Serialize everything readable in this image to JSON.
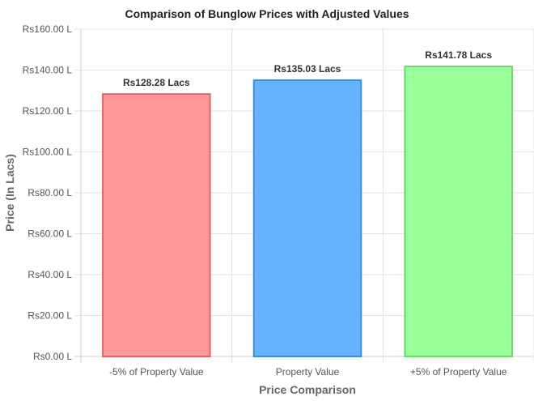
{
  "chart_data": {
    "type": "bar",
    "title": "Comparison of Bunglow Prices with Adjusted Values",
    "xlabel": "Price Comparison",
    "ylabel": "Price (In Lacs)",
    "categories": [
      "-5% of Property Value",
      "Property Value",
      "+5% of Property Value"
    ],
    "values": [
      128.28,
      135.03,
      141.78
    ],
    "data_labels": [
      "Rs128.28 Lacs",
      "Rs135.03 Lacs",
      "Rs141.78 Lacs"
    ],
    "ylim": [
      0,
      160
    ],
    "y_ticks": [
      0,
      20,
      40,
      60,
      80,
      100,
      120,
      140,
      160
    ],
    "y_tick_labels": [
      "Rs0.00 L",
      "Rs20.00 L",
      "Rs40.00 L",
      "Rs60.00 L",
      "Rs80.00 L",
      "Rs100.00 L",
      "Rs120.00 L",
      "Rs140.00 L",
      "Rs160.00 L"
    ],
    "grid": true,
    "bar_fill_colors": [
      "#ff9898",
      "#66b2ff",
      "#99ff99"
    ],
    "bar_stroke_colors": [
      "#e06666",
      "#3a8ee0",
      "#66dd66"
    ]
  }
}
